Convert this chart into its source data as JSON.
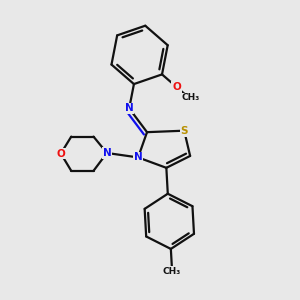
{
  "bg_color": "#e8e8e8",
  "bond_color": "#111111",
  "bond_width": 1.6,
  "N_color": "#1010ee",
  "O_color": "#ee1010",
  "S_color": "#b89000",
  "figsize": [
    3.0,
    3.0
  ],
  "dpi": 100,
  "xlim": [
    0.0,
    1.0
  ],
  "ylim": [
    0.0,
    1.0
  ]
}
